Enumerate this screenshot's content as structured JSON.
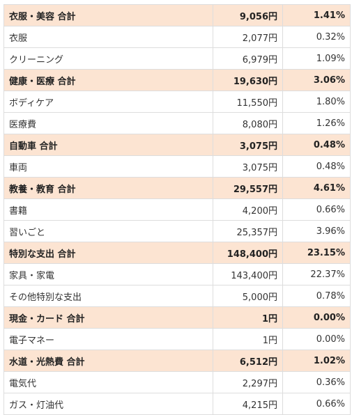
{
  "table": {
    "rows": [
      {
        "total": true,
        "cells": [
          "衣服・美容 合計",
          "9,056円",
          "1.41%"
        ]
      },
      {
        "total": false,
        "cells": [
          "衣服",
          "2,077円",
          "0.32%"
        ]
      },
      {
        "total": false,
        "cells": [
          "クリーニング",
          "6,979円",
          "1.09%"
        ]
      },
      {
        "total": true,
        "cells": [
          "健康・医療 合計",
          "19,630円",
          "3.06%"
        ]
      },
      {
        "total": false,
        "cells": [
          "ボディケア",
          "11,550円",
          "1.80%"
        ]
      },
      {
        "total": false,
        "cells": [
          "医療費",
          "8,080円",
          "1.26%"
        ]
      },
      {
        "total": true,
        "cells": [
          "自動車 合計",
          "3,075円",
          "0.48%"
        ]
      },
      {
        "total": false,
        "cells": [
          "車両",
          "3,075円",
          "0.48%"
        ]
      },
      {
        "total": true,
        "cells": [
          "教養・教育 合計",
          "29,557円",
          "4.61%"
        ]
      },
      {
        "total": false,
        "cells": [
          "書籍",
          "4,200円",
          "0.66%"
        ]
      },
      {
        "total": false,
        "cells": [
          "習いごと",
          "25,357円",
          "3.96%"
        ]
      },
      {
        "total": true,
        "cells": [
          "特別な支出 合計",
          "148,400円",
          "23.15%"
        ]
      },
      {
        "total": false,
        "cells": [
          "家具・家電",
          "143,400円",
          "22.37%"
        ]
      },
      {
        "total": false,
        "cells": [
          "その他特別な支出",
          "5,000円",
          "0.78%"
        ]
      },
      {
        "total": true,
        "cells": [
          "現金・カード 合計",
          "1円",
          "0.00%"
        ]
      },
      {
        "total": false,
        "cells": [
          "電子マネー",
          "1円",
          "0.00%"
        ]
      },
      {
        "total": true,
        "cells": [
          "水道・光熱費 合計",
          "6,512円",
          "1.02%"
        ]
      },
      {
        "total": false,
        "cells": [
          "電気代",
          "2,297円",
          "0.36%"
        ]
      },
      {
        "total": false,
        "cells": [
          "ガス・灯油代",
          "4,215円",
          "0.66%"
        ]
      }
    ]
  }
}
